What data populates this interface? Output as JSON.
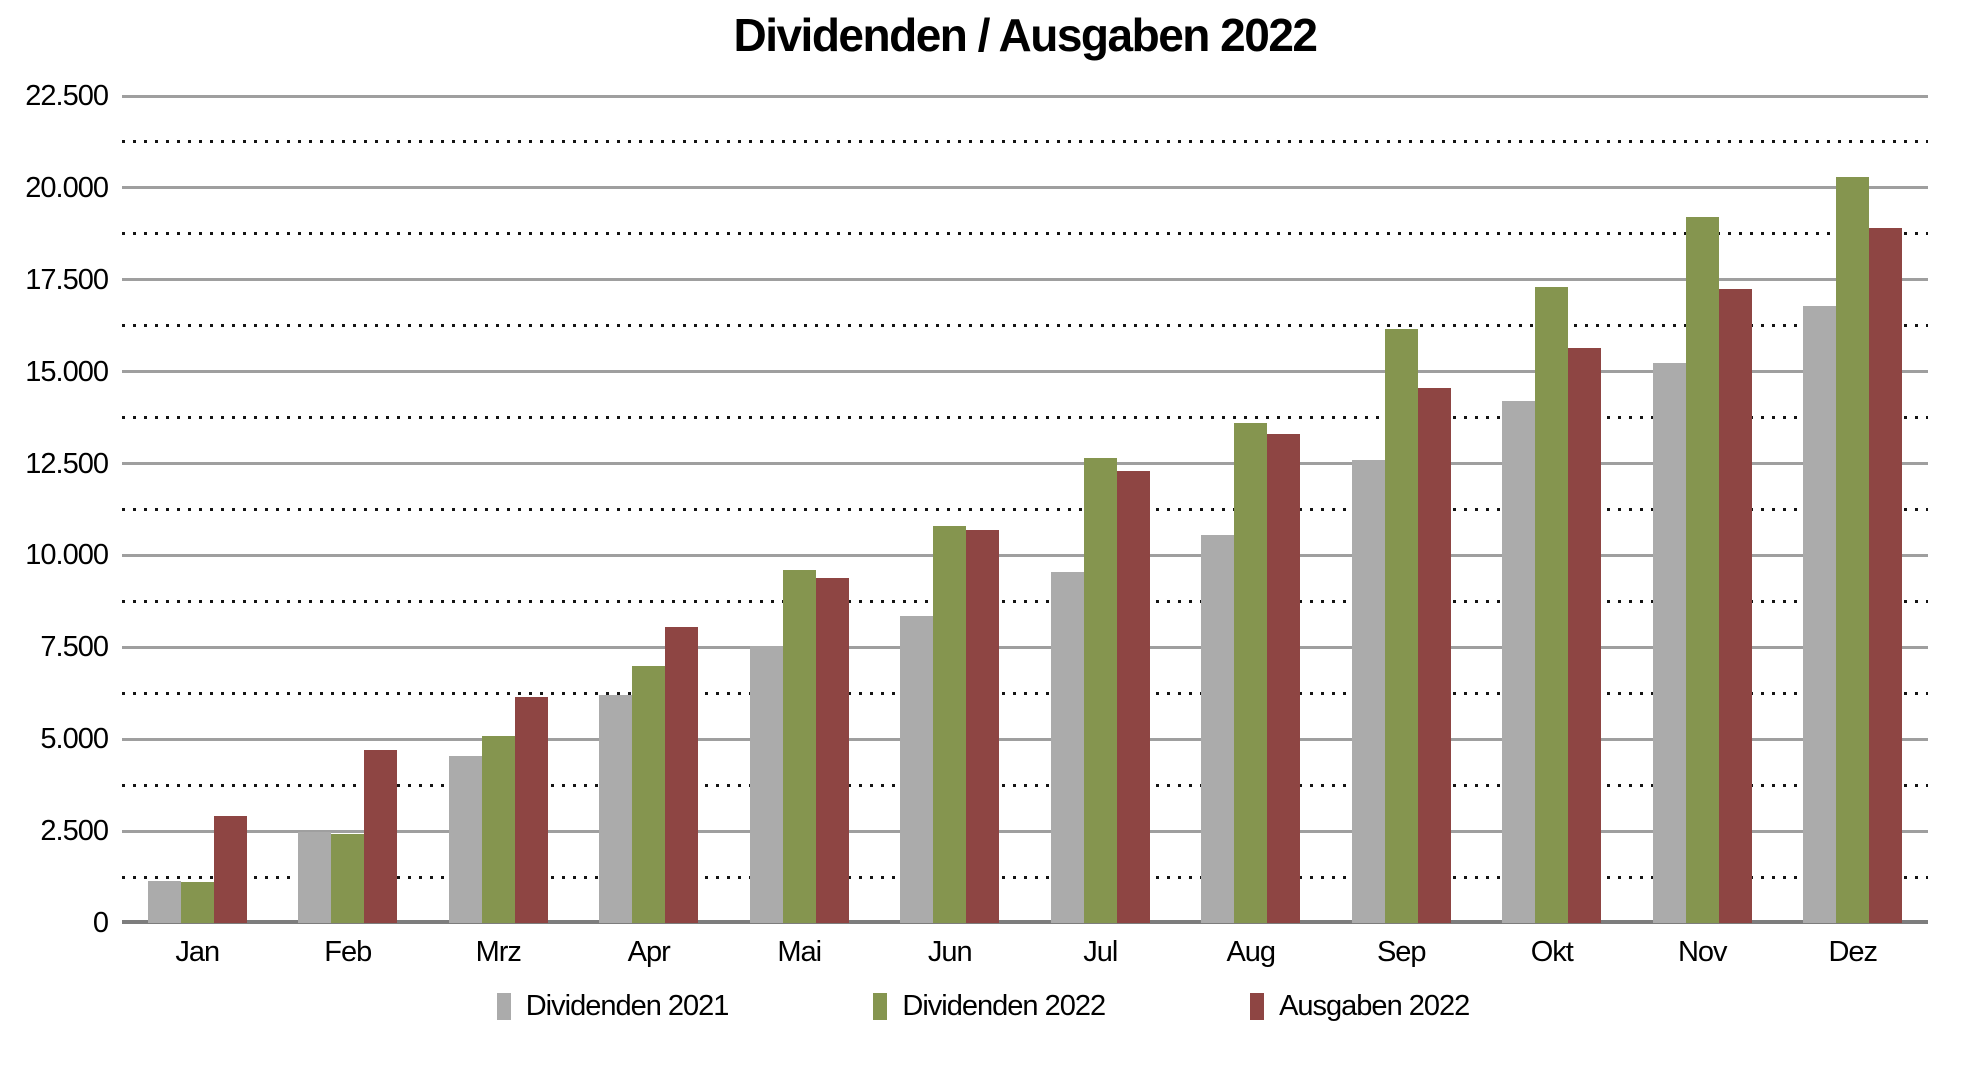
{
  "title": "Dividenden / Ausgaben 2022",
  "y_axis": {
    "tick_values": [
      0,
      2500,
      5000,
      7500,
      10000,
      12500,
      15000,
      17500,
      20000,
      22500
    ],
    "tick_labels": [
      "0",
      "2.500",
      "5.000",
      "7.500",
      "10.000",
      "12.500",
      "15.000",
      "17.500",
      "20.000",
      "22.500"
    ]
  },
  "chart_data": {
    "type": "bar",
    "title": "Dividenden / Ausgaben 2022",
    "categories": [
      "Jan",
      "Feb",
      "Mrz",
      "Apr",
      "Mai",
      "Jun",
      "Jul",
      "Aug",
      "Sep",
      "Okt",
      "Nov",
      "Dez"
    ],
    "series": [
      {
        "name": "Dividenden 2021",
        "color": "#ABABAB",
        "values": [
          1150,
          2480,
          4550,
          6200,
          7550,
          8350,
          9550,
          10550,
          12600,
          14200,
          15250,
          16800
        ]
      },
      {
        "name": "Dividenden 2022",
        "color": "#85954F",
        "values": [
          1130,
          2410,
          5100,
          7000,
          9600,
          10800,
          12650,
          13600,
          16150,
          17300,
          19200,
          20300
        ]
      },
      {
        "name": "Ausgaben 2022",
        "color": "#8E4543",
        "values": [
          2900,
          4720,
          6150,
          8050,
          9400,
          10700,
          12300,
          13300,
          14550,
          15650,
          17250,
          18900
        ]
      }
    ],
    "ylim": [
      0,
      22500
    ],
    "y_major_step": 2500,
    "y_minor_step": 1250,
    "grid": true,
    "gridline_major_style": "solid",
    "gridline_minor_style": "dotted",
    "legend_position": "bottom",
    "xlabel": "",
    "ylabel": ""
  }
}
